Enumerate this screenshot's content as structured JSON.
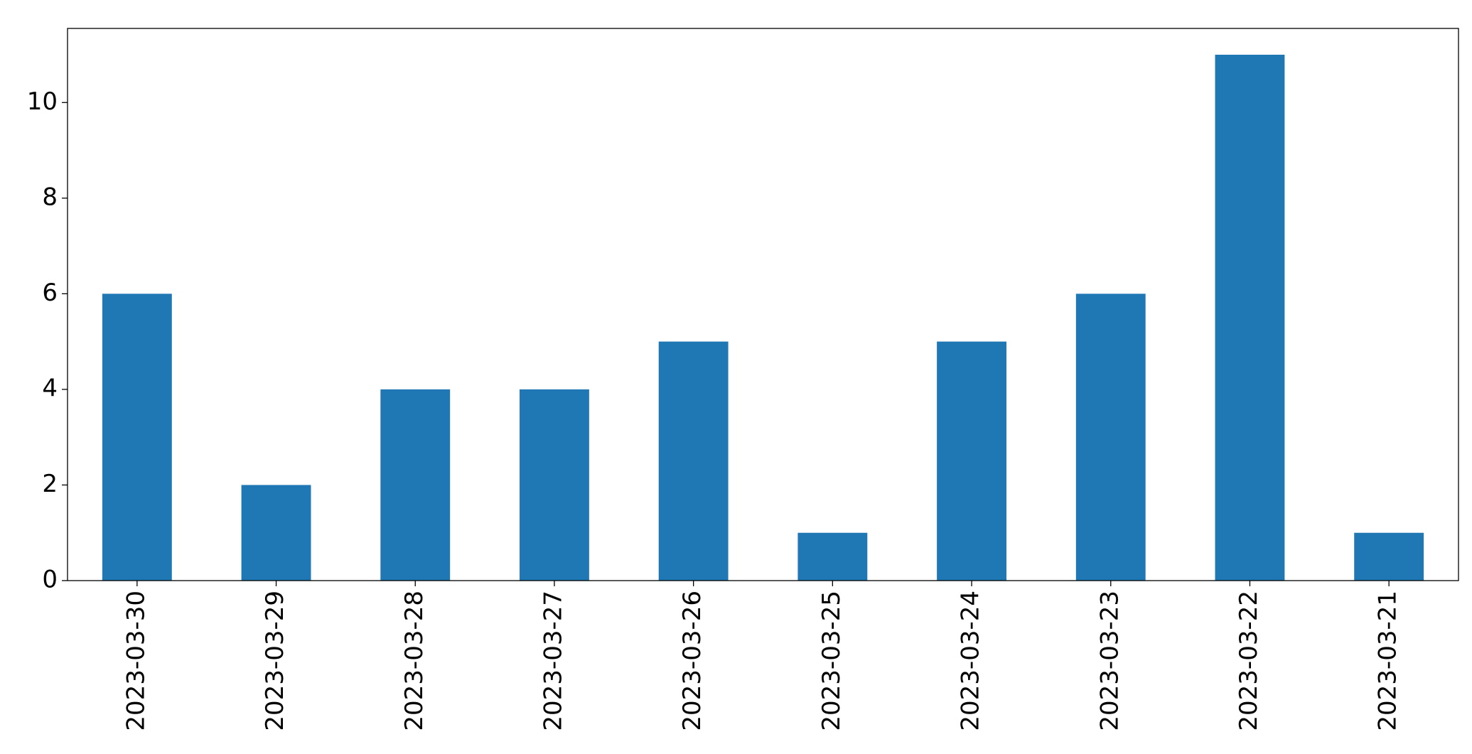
{
  "chart_data": {
    "type": "bar",
    "categories": [
      "2023-03-30",
      "2023-03-29",
      "2023-03-28",
      "2023-03-27",
      "2023-03-26",
      "2023-03-25",
      "2023-03-24",
      "2023-03-23",
      "2023-03-22",
      "2023-03-21"
    ],
    "values": [
      6,
      2,
      4,
      4,
      5,
      1,
      5,
      6,
      11,
      1
    ],
    "color": "#1f77b4",
    "ylim": [
      0,
      11.55
    ],
    "yticks": [
      0,
      2,
      4,
      6,
      8,
      10
    ],
    "grid": false
  }
}
